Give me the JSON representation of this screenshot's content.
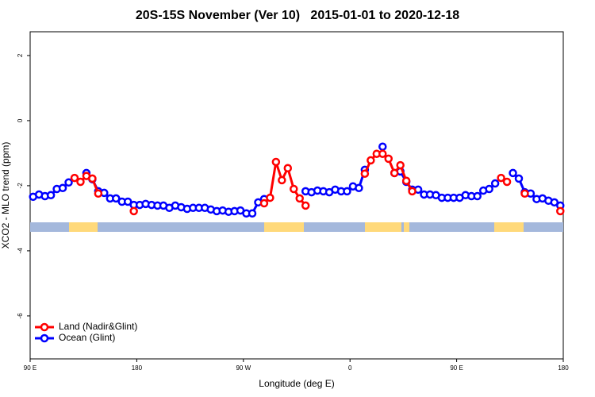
{
  "chart_data": {
    "type": "line",
    "title": "20S-15S November (Ver 10)   2015-01-01 to 2020-12-18",
    "xlabel": "Longitude (deg E)",
    "ylabel": "XCO2 - MLO trend (ppm)",
    "x": [
      92.5,
      97.5,
      102.5,
      107.5,
      112.5,
      117.5,
      122.5,
      127.5,
      132.5,
      137.5,
      142.5,
      147.5,
      152.5,
      157.5,
      162.5,
      167.5,
      172.5,
      177.5,
      182.5,
      187.5,
      192.5,
      197.5,
      202.5,
      207.5,
      212.5,
      217.5,
      222.5,
      227.5,
      232.5,
      237.5,
      242.5,
      247.5,
      252.5,
      257.5,
      262.5,
      267.5,
      272.5,
      277.5,
      282.5,
      287.5,
      292.5,
      297.5,
      302.5,
      307.5,
      312.5,
      317.5,
      322.5,
      327.5,
      332.5,
      337.5,
      342.5,
      347.5,
      352.5,
      357.5,
      362.5,
      367.5,
      372.5,
      377.5,
      382.5,
      387.5,
      392.5,
      397.5,
      402.5,
      407.5,
      412.5,
      417.5,
      422.5,
      427.5,
      432.5,
      437.5,
      442.5,
      447.5,
      452.5,
      457.5,
      462.5,
      467.5,
      472.5,
      477.5,
      482.5,
      487.5,
      492.5,
      497.5,
      502.5,
      507.5,
      512.5,
      517.5,
      522.5,
      527.5,
      532.5,
      537.5
    ],
    "series": [
      {
        "name": "Ocean (Glint)",
        "color": "#0000ff",
        "values": [
          -2.34,
          -2.27,
          -2.32,
          -2.29,
          -2.1,
          -2.07,
          -1.9,
          null,
          null,
          -1.61,
          -1.8,
          -2.17,
          -2.22,
          -2.39,
          -2.39,
          -2.49,
          -2.49,
          -2.59,
          -2.59,
          -2.56,
          -2.59,
          -2.61,
          -2.61,
          -2.68,
          -2.61,
          -2.66,
          -2.71,
          -2.68,
          -2.68,
          -2.68,
          -2.73,
          -2.78,
          -2.76,
          -2.8,
          -2.78,
          -2.76,
          -2.85,
          -2.85,
          -2.51,
          -2.41,
          null,
          null,
          null,
          null,
          null,
          null,
          -2.17,
          -2.2,
          -2.15,
          -2.17,
          -2.2,
          -2.12,
          -2.17,
          -2.17,
          -2.02,
          -2.07,
          -1.51,
          null,
          null,
          -0.8,
          null,
          -1.61,
          -1.56,
          -1.88,
          -2.12,
          -2.12,
          -2.27,
          -2.27,
          -2.29,
          -2.37,
          -2.37,
          -2.37,
          -2.37,
          -2.29,
          -2.32,
          -2.32,
          -2.15,
          -2.1,
          -1.93,
          null,
          null,
          -1.61,
          -1.78,
          -2.2,
          -2.24,
          -2.41,
          -2.39,
          -2.46,
          -2.51,
          -2.61
        ]
      },
      {
        "name": "Land (Nadir&Glint)",
        "color": "#ff0000",
        "values": [
          null,
          null,
          null,
          null,
          null,
          null,
          null,
          -1.76,
          -1.88,
          -1.7,
          -1.78,
          -2.24,
          null,
          null,
          null,
          null,
          null,
          -2.78,
          null,
          null,
          null,
          null,
          null,
          null,
          null,
          null,
          null,
          null,
          null,
          null,
          null,
          null,
          null,
          null,
          null,
          null,
          null,
          null,
          null,
          -2.54,
          -2.37,
          -1.27,
          -1.83,
          -1.46,
          -2.1,
          -2.39,
          -2.61,
          null,
          null,
          null,
          null,
          null,
          null,
          null,
          null,
          null,
          -1.63,
          -1.22,
          -1.02,
          -1.02,
          -1.17,
          -1.61,
          -1.37,
          -1.85,
          -2.17,
          null,
          null,
          null,
          null,
          null,
          null,
          null,
          null,
          null,
          null,
          null,
          null,
          null,
          null,
          -1.76,
          -1.88,
          null,
          null,
          -2.24,
          null,
          null,
          null,
          null,
          null,
          -2.78
        ]
      }
    ],
    "legend_order": [
      1,
      0
    ],
    "legend": "bottomleft",
    "xlim": [
      90,
      540
    ],
    "xticks": [
      {
        "value": 90,
        "label": "90 E"
      },
      180,
      {
        "value": 270,
        "label": "90 W"
      },
      {
        "value": 360,
        "label": "0"
      },
      {
        "value": 450,
        "label": "90 E"
      },
      {
        "value": 540,
        "label": "180"
      }
    ],
    "ylim": [
      -7.32,
      2.73
    ],
    "yticks": [
      2,
      0,
      -2,
      -4,
      -6
    ]
  }
}
